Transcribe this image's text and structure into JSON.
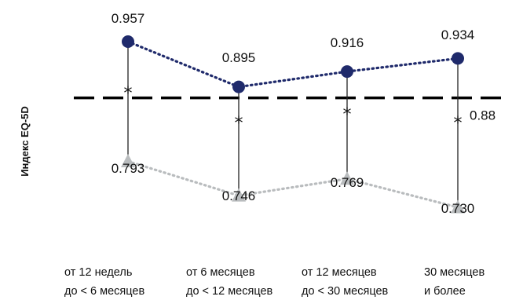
{
  "chart_data": {
    "type": "line",
    "ylabel": "Индекс EQ-5D",
    "categories": [
      [
        "от 12 недель",
        "до < 6 месяцев"
      ],
      [
        "от 6 месяцев",
        "до < 12 месяцев"
      ],
      [
        "от 12 месяцев",
        "до <  30 месяцев"
      ],
      [
        "30 месяцев",
        "и более"
      ]
    ],
    "series": [
      {
        "values": [
          0.957,
          0.895,
          0.916,
          0.934
        ],
        "labels": [
          "0.957",
          "0.895",
          "0.916",
          "0.934"
        ],
        "color": "#1f2a6b",
        "marker": "circle",
        "line": "dotted"
      },
      {
        "values": [
          0.793,
          0.746,
          0.769,
          0.73
        ],
        "labels": [
          "0.793",
          "0.746",
          "0.769",
          "0.730"
        ],
        "color": "#b9bcbe",
        "marker": "triangle",
        "line": "dotted"
      }
    ],
    "reference_line": {
      "value": 0.88,
      "label": "0.88",
      "style": "dashed",
      "color": "#000000"
    },
    "significance_markers": [
      "*",
      "*",
      "*",
      "*"
    ],
    "ylim": [
      0.7,
      1.0
    ],
    "grid": false,
    "legend": "none"
  }
}
